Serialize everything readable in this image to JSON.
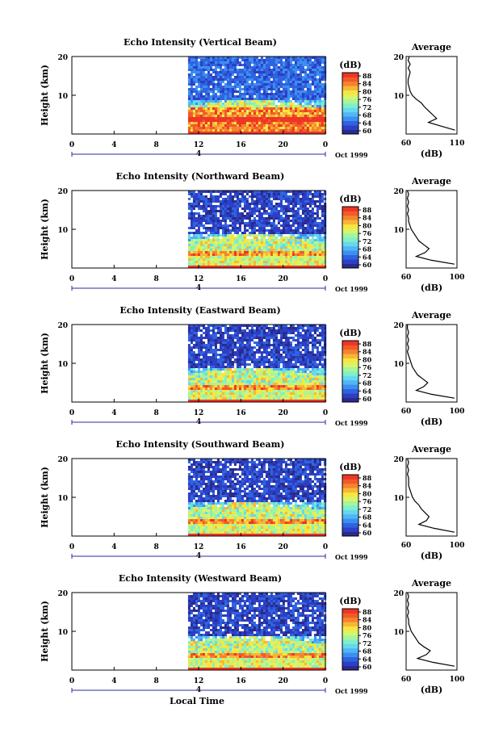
{
  "colorbar": {
    "unit_label": "(dB)",
    "ticks": [
      "88",
      "84",
      "80",
      "76",
      "72",
      "68",
      "64",
      "60"
    ],
    "colors": [
      "#2b2a8c",
      "#2d3fc4",
      "#2f63e0",
      "#3c8ff0",
      "#52b5f5",
      "#66d8ee",
      "#7ff0c8",
      "#a8f59a",
      "#d8f56a",
      "#f7e640",
      "#f8b637",
      "#f6832e",
      "#f15a2a",
      "#ee3526"
    ]
  },
  "chart_data": [
    {
      "type": "heatmap",
      "title": "Echo Intensity (Vertical Beam)",
      "ylabel": "Height (km)",
      "xlabel": "",
      "x_ticks": [
        "0",
        "4",
        "8",
        "12",
        "16",
        "20",
        "0"
      ],
      "y_ticks": [
        "20",
        "10"
      ],
      "date_label": "Oct 1999",
      "day_marker": "4",
      "xlim": [
        0,
        24
      ],
      "ylim": [
        0,
        20
      ],
      "data_start_hour": 11,
      "profile": {
        "title": "Average",
        "xlabel": "(dB)",
        "x_ticks": [
          "60",
          "110"
        ],
        "y_ticks": [
          "20",
          "10"
        ],
        "xlim": [
          60,
          110
        ],
        "heights": [
          1,
          2,
          3,
          4,
          5,
          6,
          7,
          8,
          9,
          10,
          11,
          12,
          13,
          14,
          15,
          16,
          17,
          18,
          19,
          20
        ],
        "values": [
          108,
          95,
          82,
          90,
          86,
          82,
          78,
          75,
          70,
          66,
          64,
          63,
          62,
          62,
          63,
          64,
          62,
          64,
          62,
          63
        ]
      }
    },
    {
      "type": "heatmap",
      "title": "Echo Intensity (Northward Beam)",
      "ylabel": "Height (km)",
      "xlabel": "",
      "x_ticks": [
        "0",
        "4",
        "8",
        "12",
        "16",
        "20",
        "0"
      ],
      "y_ticks": [
        "20",
        "10"
      ],
      "date_label": "Oct 1999",
      "day_marker": "4",
      "xlim": [
        0,
        24
      ],
      "ylim": [
        0,
        20
      ],
      "data_start_hour": 11,
      "profile": {
        "title": "Average",
        "xlabel": "(dB)",
        "x_ticks": [
          "60",
          "100"
        ],
        "y_ticks": [
          "20",
          "10"
        ],
        "xlim": [
          60,
          100
        ],
        "heights": [
          1,
          2,
          3,
          4,
          5,
          6,
          7,
          8,
          9,
          10,
          11,
          12,
          13,
          14,
          15,
          16,
          17,
          18,
          19,
          20
        ],
        "values": [
          98,
          80,
          68,
          75,
          78,
          74,
          70,
          68,
          66,
          64,
          63,
          62,
          62,
          61,
          62,
          61,
          62,
          61,
          62,
          61
        ]
      }
    },
    {
      "type": "heatmap",
      "title": "Echo Intensity (Eastward Beam)",
      "ylabel": "Height (km)",
      "xlabel": "",
      "x_ticks": [
        "0",
        "4",
        "8",
        "12",
        "16",
        "20",
        "0"
      ],
      "y_ticks": [
        "20",
        "10"
      ],
      "date_label": "Oct 1999",
      "day_marker": "4",
      "xlim": [
        0,
        24
      ],
      "ylim": [
        0,
        20
      ],
      "data_start_hour": 11,
      "profile": {
        "title": "Average",
        "xlabel": "(dB)",
        "x_ticks": [
          "60",
          "100"
        ],
        "y_ticks": [
          "20",
          "10"
        ],
        "xlim": [
          60,
          100
        ],
        "heights": [
          1,
          2,
          3,
          4,
          5,
          6,
          7,
          8,
          9,
          10,
          11,
          12,
          13,
          14,
          15,
          16,
          17,
          18,
          19,
          20
        ],
        "values": [
          98,
          80,
          68,
          74,
          77,
          73,
          69,
          67,
          65,
          64,
          63,
          62,
          61,
          62,
          61,
          62,
          61,
          62,
          61,
          61
        ]
      }
    },
    {
      "type": "heatmap",
      "title": "Echo Intensity (Southward Beam)",
      "ylabel": "Height (km)",
      "xlabel": "",
      "x_ticks": [
        "0",
        "4",
        "8",
        "12",
        "16",
        "20",
        "0"
      ],
      "y_ticks": [
        "20",
        "10"
      ],
      "date_label": "Oct 1999",
      "day_marker": "4",
      "xlim": [
        0,
        24
      ],
      "ylim": [
        0,
        20
      ],
      "data_start_hour": 11,
      "profile": {
        "title": "Average",
        "xlabel": "(dB)",
        "x_ticks": [
          "60",
          "100"
        ],
        "y_ticks": [
          "20",
          "10"
        ],
        "xlim": [
          60,
          100
        ],
        "heights": [
          1,
          2,
          3,
          4,
          5,
          6,
          7,
          8,
          9,
          10,
          11,
          12,
          13,
          14,
          15,
          16,
          17,
          18,
          19,
          20
        ],
        "values": [
          98,
          82,
          70,
          76,
          78,
          75,
          72,
          70,
          67,
          65,
          64,
          63,
          62,
          62,
          62,
          61,
          62,
          61,
          62,
          61
        ]
      }
    },
    {
      "type": "heatmap",
      "title": "Echo Intensity (Westward Beam)",
      "ylabel": "Height (km)",
      "xlabel": "Local Time",
      "x_ticks": [
        "0",
        "4",
        "8",
        "12",
        "16",
        "20",
        "0"
      ],
      "y_ticks": [
        "20",
        "10"
      ],
      "date_label": "Oct 1999",
      "day_marker": "4",
      "xlim": [
        0,
        24
      ],
      "ylim": [
        0,
        20
      ],
      "data_start_hour": 11,
      "profile": {
        "title": "Average",
        "xlabel": "(dB)",
        "x_ticks": [
          "60",
          "100"
        ],
        "y_ticks": [
          "20",
          "10"
        ],
        "xlim": [
          60,
          100
        ],
        "heights": [
          1,
          2,
          3,
          4,
          5,
          6,
          7,
          8,
          9,
          10,
          11,
          12,
          13,
          14,
          15,
          16,
          17,
          18,
          19,
          20
        ],
        "values": [
          98,
          81,
          69,
          76,
          79,
          74,
          70,
          68,
          66,
          64,
          63,
          62,
          62,
          61,
          62,
          61,
          62,
          61,
          62,
          61
        ]
      }
    }
  ]
}
